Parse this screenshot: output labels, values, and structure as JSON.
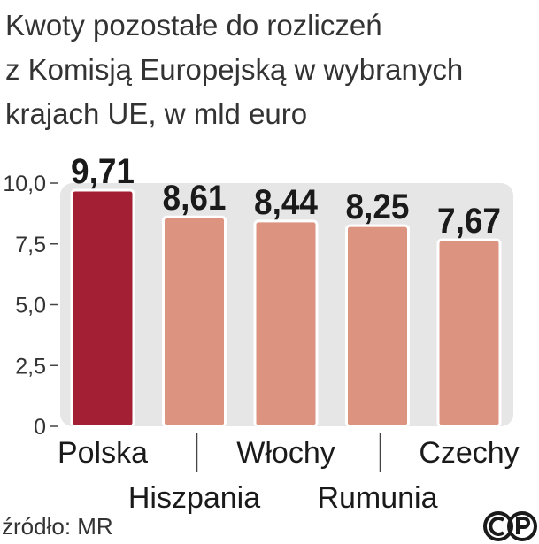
{
  "title_lines": [
    "Kwoty pozostałe do rozliczeń",
    "z Komisją Europejską w wybranych",
    "krajach UE, w mld euro"
  ],
  "source": "źródło: MR",
  "logo": "cp-logo",
  "colors": {
    "highlight": "#a31f34",
    "bar": "#dc9380",
    "plot_bg": "#e6e6e6",
    "text": "#1a1a1a"
  },
  "chart_data": {
    "type": "bar",
    "categories": [
      "Polska",
      "Hiszpania",
      "Włochy",
      "Rumunia",
      "Czechy"
    ],
    "values": [
      9.71,
      8.61,
      8.44,
      8.25,
      7.67
    ],
    "value_labels": [
      "9,71",
      "8,61",
      "8,44",
      "8,25",
      "7,67"
    ],
    "highlight_index": 0,
    "yticks": [
      0,
      2.5,
      5,
      7.5,
      10
    ],
    "ytick_labels": [
      "0",
      "2,5",
      "5,0",
      "7,5",
      "10,0"
    ],
    "ylim": [
      0,
      10
    ],
    "title": "Kwoty pozostałe do rozliczeń z Komisją Europejską w wybranych krajach UE, w mld euro",
    "xlabel": "",
    "ylabel": ""
  }
}
